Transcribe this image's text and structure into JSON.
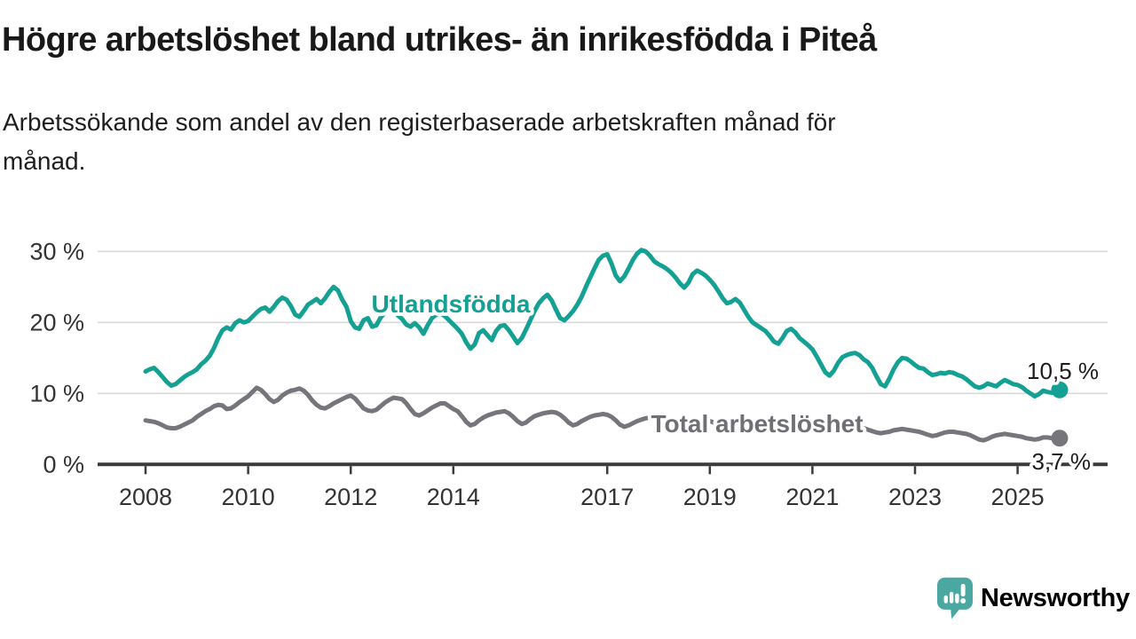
{
  "header": {
    "title": "Högre arbetslöshet bland utrikes- än inrikesfödda i Piteå",
    "subtitle_lines": [
      "Arbetssökande som andel av den registerbaserade arbetskraften månad för",
      "månad."
    ]
  },
  "footer": {
    "brand": "Newsworthy"
  },
  "colors": {
    "accent_teal": "#14a093",
    "series_gray": "#76757b",
    "label_gray": "#6f6f74",
    "logo_teal": "#4ba7a1",
    "axis_dark": "#3b3b3b",
    "gridline": "#dadada",
    "text_dark": "#191919"
  },
  "chart_data": {
    "type": "line",
    "title": "Högre arbetslöshet bland utrikes- än inrikesfödda i Piteå",
    "subtitle": "Arbetssökande som andel av den registerbaserade arbetskraften månad för månad.",
    "unit": "%",
    "frequency": "monthly",
    "x_start": {
      "year": 2008,
      "month": 1
    },
    "x_end": {
      "year": 2025,
      "month": 10
    },
    "ylim": [
      0,
      31
    ],
    "grid": true,
    "legend_position": "inline-labels",
    "y_ticks": [
      {
        "value": 0,
        "label": "0 %"
      },
      {
        "value": 10,
        "label": "10 %"
      },
      {
        "value": 20,
        "label": "20 %"
      },
      {
        "value": 30,
        "label": "30 %"
      }
    ],
    "x_ticks": [
      {
        "value": 2008,
        "label": "2008"
      },
      {
        "value": 2010,
        "label": "2010"
      },
      {
        "value": 2012,
        "label": "2012"
      },
      {
        "value": 2014,
        "label": "2014"
      },
      {
        "value": 2017,
        "label": "2017"
      },
      {
        "value": 2019,
        "label": "2019"
      },
      {
        "value": 2021,
        "label": "2021"
      },
      {
        "value": 2023,
        "label": "2023"
      },
      {
        "value": 2025,
        "label": "2025"
      }
    ],
    "series": [
      {
        "name": "Utlandsfödda",
        "slug": "utlandsfodda",
        "color": "#14a093",
        "end_label": "10,5 %",
        "end_value": 10.5,
        "values": [
          13.1,
          13.4,
          13.6,
          13.0,
          12.3,
          11.6,
          11.1,
          11.3,
          11.8,
          12.3,
          12.7,
          13.0,
          13.4,
          14.1,
          14.6,
          15.3,
          16.4,
          17.8,
          18.9,
          19.3,
          19.0,
          19.9,
          20.3,
          20.0,
          20.2,
          20.8,
          21.4,
          21.9,
          22.1,
          21.5,
          22.2,
          23.0,
          23.5,
          23.2,
          22.3,
          21.1,
          20.8,
          21.6,
          22.5,
          22.9,
          23.3,
          22.7,
          23.4,
          24.3,
          25.0,
          24.5,
          23.2,
          22.2,
          20.2,
          19.3,
          19.1,
          20.3,
          20.6,
          19.4,
          19.6,
          20.7,
          21.4,
          21.8,
          21.5,
          21.0,
          20.5,
          19.7,
          19.4,
          19.9,
          19.3,
          18.4,
          19.6,
          20.6,
          21.1,
          21.3,
          20.9,
          20.3,
          19.7,
          19.1,
          18.4,
          17.2,
          16.3,
          16.9,
          18.5,
          18.9,
          18.2,
          17.5,
          18.8,
          19.5,
          19.6,
          18.9,
          18.0,
          17.1,
          17.8,
          19.0,
          20.3,
          21.6,
          22.7,
          23.4,
          23.9,
          23.1,
          21.8,
          20.6,
          20.3,
          20.9,
          21.6,
          22.5,
          23.6,
          25.0,
          26.3,
          27.6,
          28.8,
          29.4,
          29.6,
          28.3,
          26.6,
          25.8,
          26.5,
          27.6,
          28.8,
          29.7,
          30.2,
          30.0,
          29.4,
          28.6,
          28.2,
          27.9,
          27.5,
          27.0,
          26.3,
          25.5,
          24.9,
          25.6,
          26.8,
          27.3,
          27.0,
          26.6,
          26.0,
          25.3,
          24.4,
          23.4,
          22.7,
          22.9,
          23.3,
          22.8,
          21.8,
          20.8,
          20.0,
          19.6,
          19.2,
          18.8,
          18.1,
          17.3,
          17.0,
          17.8,
          18.8,
          19.1,
          18.6,
          17.8,
          17.3,
          16.8,
          16.2,
          15.2,
          14.1,
          13.0,
          12.5,
          13.2,
          14.3,
          15.1,
          15.4,
          15.6,
          15.7,
          15.4,
          14.8,
          14.4,
          13.6,
          12.4,
          11.3,
          11.0,
          12.1,
          13.4,
          14.4,
          15.0,
          14.9,
          14.5,
          14.0,
          13.6,
          13.5,
          13.0,
          12.6,
          12.7,
          12.9,
          12.8,
          13.0,
          12.9,
          12.6,
          12.4,
          12.0,
          11.5,
          11.0,
          10.8,
          11.0,
          11.4,
          11.2,
          11.0,
          11.5,
          11.9,
          11.6,
          11.3,
          11.2,
          10.9,
          10.4,
          10.0,
          9.6,
          9.9,
          10.4,
          10.2,
          10.1,
          10.5
        ]
      },
      {
        "name": "Total arbetslöshet",
        "slug": "total-arbetsloshet",
        "color": "#76757b",
        "label_color": "#6f6f74",
        "end_label": "3,7 %",
        "end_value": 3.7,
        "values": [
          6.2,
          6.1,
          6.0,
          5.8,
          5.5,
          5.2,
          5.1,
          5.1,
          5.3,
          5.6,
          5.9,
          6.2,
          6.7,
          7.1,
          7.5,
          7.8,
          8.2,
          8.4,
          8.3,
          7.8,
          7.9,
          8.3,
          8.8,
          9.2,
          9.6,
          10.2,
          10.8,
          10.5,
          9.9,
          9.2,
          8.8,
          9.1,
          9.7,
          10.1,
          10.4,
          10.5,
          10.7,
          10.4,
          9.8,
          9.0,
          8.4,
          8.0,
          7.9,
          8.2,
          8.6,
          8.9,
          9.2,
          9.5,
          9.7,
          9.3,
          8.6,
          7.9,
          7.6,
          7.5,
          7.7,
          8.2,
          8.7,
          9.1,
          9.4,
          9.3,
          9.2,
          8.6,
          7.8,
          7.1,
          6.9,
          7.2,
          7.6,
          8.0,
          8.3,
          8.6,
          8.6,
          8.2,
          7.8,
          7.5,
          6.8,
          6.0,
          5.5,
          5.7,
          6.2,
          6.6,
          6.9,
          7.1,
          7.3,
          7.4,
          7.5,
          7.2,
          6.7,
          6.1,
          5.7,
          5.9,
          6.4,
          6.8,
          7.0,
          7.2,
          7.3,
          7.4,
          7.3,
          7.0,
          6.5,
          5.9,
          5.5,
          5.7,
          6.1,
          6.4,
          6.7,
          6.9,
          7.0,
          7.1,
          7.0,
          6.7,
          6.2,
          5.6,
          5.3,
          5.5,
          5.8,
          6.1,
          6.3,
          6.5,
          6.6,
          6.6,
          6.5,
          6.2,
          5.8,
          5.3,
          5.0,
          5.2,
          5.5,
          5.7,
          5.9,
          6.0,
          6.1,
          6.2,
          6.1,
          5.9,
          5.5,
          5.1,
          4.8,
          5.0,
          5.3,
          5.5,
          5.6,
          5.7,
          5.8,
          5.9,
          6.0,
          5.9,
          5.7,
          5.6,
          5.8,
          6.0,
          6.1,
          5.9,
          5.7,
          5.6,
          5.6,
          5.7,
          5.7,
          5.6,
          5.3,
          5.0,
          4.8,
          4.9,
          5.1,
          5.2,
          5.2,
          5.3,
          5.3,
          5.2,
          5.1,
          4.9,
          4.7,
          4.5,
          4.4,
          4.5,
          4.6,
          4.8,
          4.9,
          5.0,
          4.9,
          4.8,
          4.7,
          4.6,
          4.4,
          4.2,
          4.0,
          4.1,
          4.3,
          4.5,
          4.6,
          4.6,
          4.5,
          4.4,
          4.3,
          4.1,
          3.8,
          3.5,
          3.4,
          3.6,
          3.9,
          4.1,
          4.2,
          4.3,
          4.2,
          4.1,
          4.0,
          3.9,
          3.7,
          3.6,
          3.5,
          3.6,
          3.8,
          3.8,
          3.7,
          3.7
        ]
      }
    ]
  }
}
